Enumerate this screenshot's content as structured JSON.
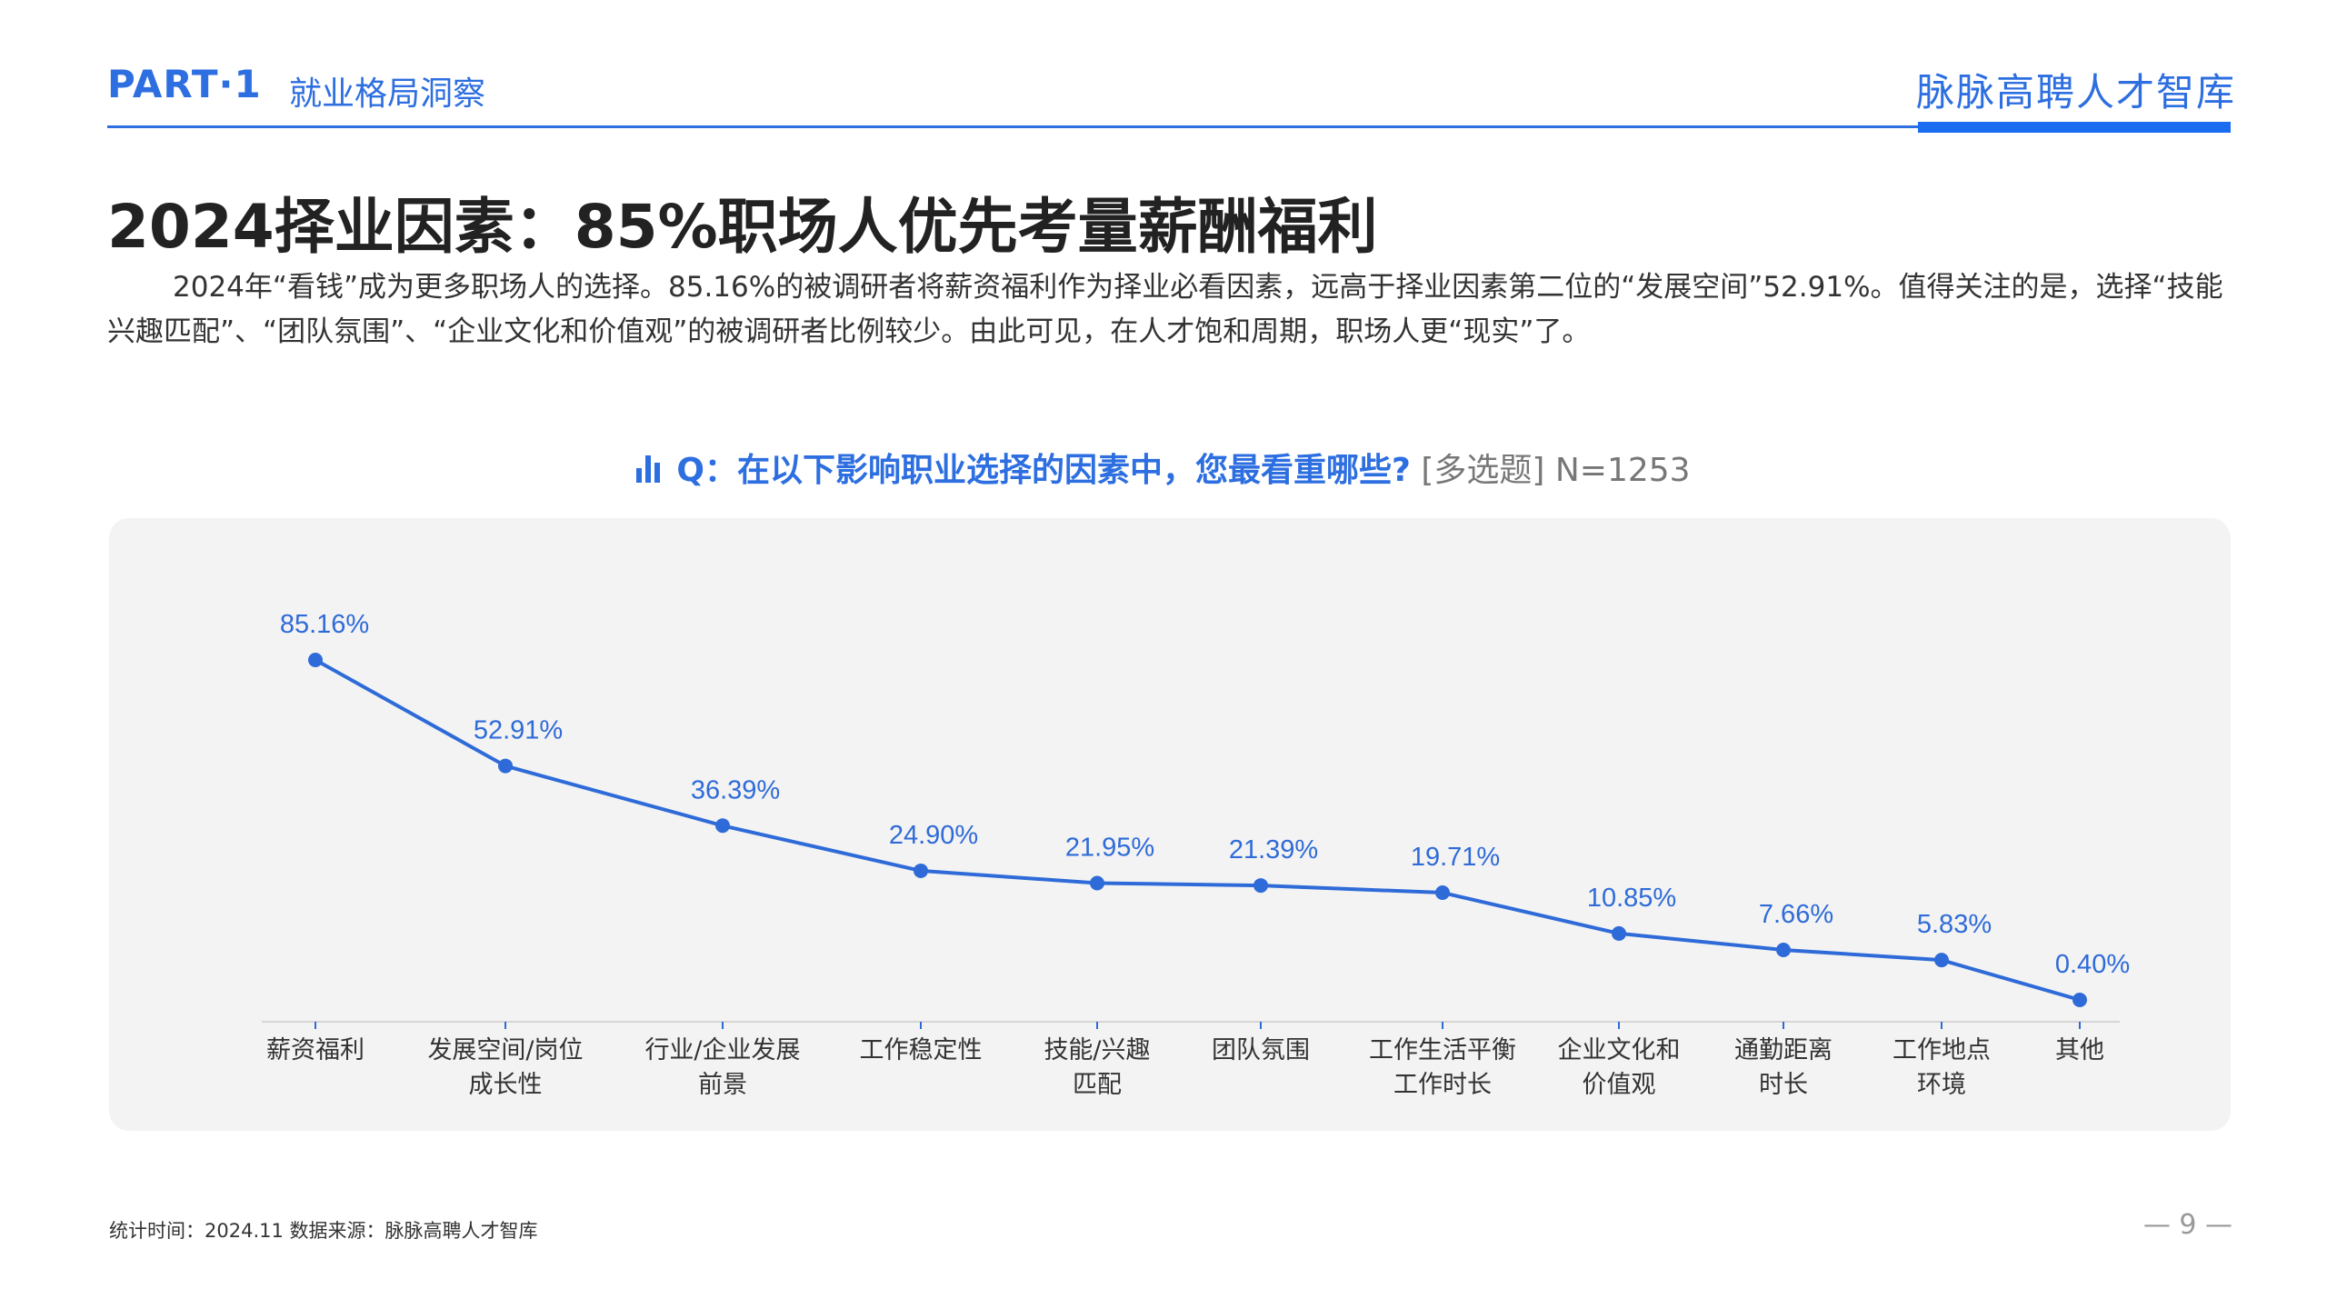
{
  "header": {
    "part": "PART·1",
    "section": "就业格局洞察",
    "brand": "脉脉高聘人才智库"
  },
  "headline": "2024择业因素：85%职场人优先考量薪酬福利",
  "summary": "2024年“看钱”成为更多职场人的选择。85.16%的被调研者将薪资福利作为择业必看因素，远高于择业因素第二位的“发展空间”52.91%。值得关注的是，选择“技能兴趣匹配”、“团队氛围”、“企业文化和价值观”的被调研者比例较少。由此可见，在人才饱和周期，职场人更“现实”了。",
  "question": {
    "icon": "bar-chart-icon",
    "text": "Q：在以下影响职业选择的因素中，您最看重哪些?",
    "note": "[多选题] N=1253"
  },
  "chart_data": {
    "type": "line",
    "categories": [
      [
        "薪资福利"
      ],
      [
        "发展空间/岗位",
        "成长性"
      ],
      [
        "行业/企业发展",
        "前景"
      ],
      [
        "工作稳定性"
      ],
      [
        "技能/兴趣",
        "匹配"
      ],
      [
        "团队氛围"
      ],
      [
        "工作生活平衡",
        "工作时长"
      ],
      [
        "企业文化和",
        "价值观"
      ],
      [
        "通勤距离",
        "时长"
      ],
      [
        "工作地点",
        "环境"
      ],
      [
        "其他"
      ]
    ],
    "values": [
      85.16,
      52.91,
      36.39,
      24.9,
      21.95,
      21.39,
      19.71,
      10.85,
      7.66,
      5.83,
      0.4
    ],
    "data_labels": [
      "85.16%",
      "52.91%",
      "36.39%",
      "24.90%",
      "21.95%",
      "21.39%",
      "19.71%",
      "10.85%",
      "7.66%",
      "5.83%",
      "0.40%"
    ],
    "unit": "%",
    "ylim": [
      0,
      100
    ],
    "grid": false,
    "line_color": "#2f6bd8",
    "label_color": "#2f6bd8"
  },
  "footer": {
    "source": "统计时间：2024.11      数据来源：脉脉高聘人才智库",
    "page": "— 9 —"
  }
}
